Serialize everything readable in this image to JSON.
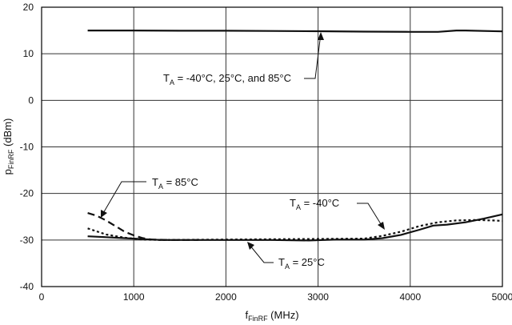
{
  "chart_data": {
    "type": "line",
    "xlabel": {
      "main": "f",
      "sub": "FinRF",
      "unit": " (MHz)"
    },
    "ylabel": {
      "main": "p",
      "sub": "FinRF",
      "unit": " (dBm)"
    },
    "xlim": [
      0,
      5000
    ],
    "ylim": [
      -40,
      20
    ],
    "xticks": [
      0,
      1000,
      2000,
      3000,
      4000,
      5000
    ],
    "yticks": [
      20,
      10,
      0,
      -10,
      -20,
      -30,
      -40
    ],
    "grid": true,
    "series": [
      {
        "name": "TA = -40°C, 25°C, and 85°C (upper)",
        "style": "solid",
        "x": [
          500,
          1000,
          1500,
          2000,
          2500,
          3000,
          3500,
          4000,
          4300,
          4500,
          4600,
          5000
        ],
        "y": [
          15.0,
          15.0,
          14.95,
          14.95,
          14.9,
          14.85,
          14.75,
          14.7,
          14.7,
          15.0,
          15.0,
          14.8
        ]
      },
      {
        "name": "TA = 25°C",
        "style": "solid",
        "x": [
          500,
          700,
          900,
          1100,
          1300,
          1600,
          2000,
          2500,
          2900,
          3200,
          3500,
          3700,
          3900,
          4100,
          4250,
          4400,
          4600,
          4800,
          5000
        ],
        "y": [
          -29.2,
          -29.4,
          -29.6,
          -29.8,
          -30.0,
          -30.0,
          -30.0,
          -30.0,
          -30.1,
          -29.9,
          -29.9,
          -29.6,
          -28.9,
          -27.8,
          -26.9,
          -26.7,
          -26.2,
          -25.4,
          -24.5
        ]
      },
      {
        "name": "TA = 85°C",
        "style": "dashed",
        "x": [
          500,
          600,
          700,
          800,
          900,
          1000,
          1100,
          1200,
          1400,
          1700
        ],
        "y": [
          -24.2,
          -24.8,
          -25.8,
          -27.0,
          -28.2,
          -29.0,
          -29.6,
          -29.9,
          -30.0,
          -30.0
        ]
      },
      {
        "name": "TA = -40°C",
        "style": "dotted",
        "x": [
          500,
          700,
          900,
          1100,
          1300,
          3500,
          3700,
          3900,
          4100,
          4300,
          4500,
          4700,
          4900,
          5000
        ],
        "y": [
          -27.5,
          -28.8,
          -29.5,
          -29.9,
          -30.0,
          -29.7,
          -29.1,
          -28.2,
          -27.0,
          -26.2,
          -25.8,
          -25.7,
          -25.8,
          -25.9
        ]
      }
    ],
    "annotations": [
      {
        "id": "top",
        "main": "T",
        "sub": "A",
        "rest": " = -40°C, 25°C, and 85°C"
      },
      {
        "id": "t85",
        "main": "T",
        "sub": "A",
        "rest": " = 85°C"
      },
      {
        "id": "tm40",
        "main": "T",
        "sub": "A",
        "rest": " = -40°C"
      },
      {
        "id": "t25",
        "main": "T",
        "sub": "A",
        "rest": " = 25°C"
      }
    ]
  }
}
